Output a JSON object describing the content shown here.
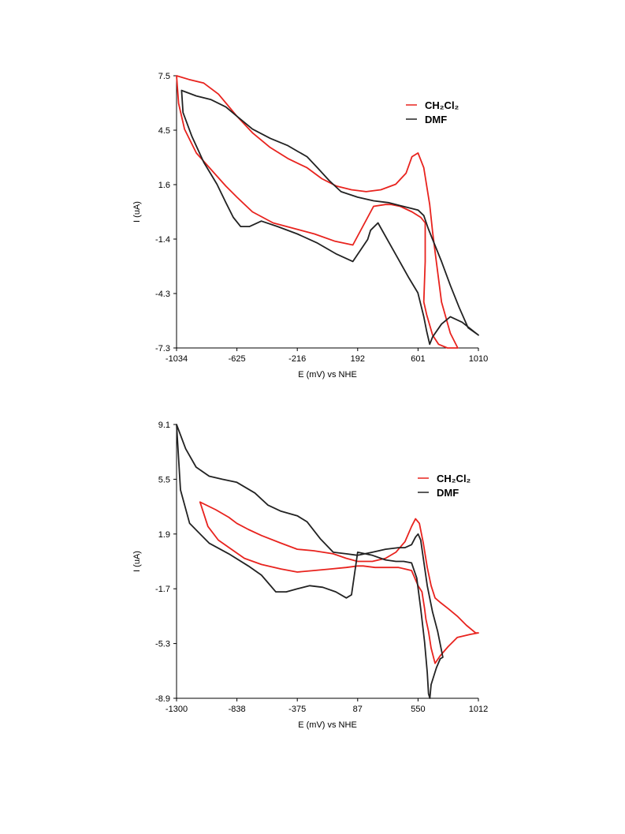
{
  "chart_data": [
    {
      "type": "line",
      "xlabel": "E (mV) vs NHE",
      "ylabel": "I (uA)",
      "xlim": [
        -1034,
        1010
      ],
      "ylim": [
        -7.3,
        7.5
      ],
      "x_ticks": [
        "-1034",
        "-625",
        "-216",
        "192",
        "601",
        "1010"
      ],
      "y_ticks": [
        "7.5",
        "4.5",
        "1.6",
        "-1.4",
        "-4.3",
        "-7.3"
      ],
      "legend_position": "top-right",
      "series": [
        {
          "name": "CH₂Cl₂",
          "color": "#e8231e",
          "x": [
            -1034,
            -950,
            -850,
            -750,
            -625,
            -520,
            -400,
            -280,
            -150,
            -50,
            50,
            150,
            250,
            350,
            450,
            520,
            560,
            601,
            640,
            680,
            700,
            720,
            760,
            820,
            870,
            800,
            740,
            700,
            660,
            640,
            650,
            650,
            620,
            560,
            480,
            420,
            380,
            300,
            160,
            40,
            -100,
            -240,
            -380,
            -520,
            -625,
            -700,
            -800,
            -900,
            -980,
            -1020,
            -1034
          ],
          "y": [
            7.5,
            7.3,
            7.1,
            6.5,
            5.3,
            4.4,
            3.6,
            3.0,
            2.5,
            1.9,
            1.5,
            1.3,
            1.2,
            1.3,
            1.6,
            2.2,
            3.1,
            3.3,
            2.5,
            0.5,
            -1.0,
            -2.3,
            -4.8,
            -6.5,
            -7.3,
            -7.3,
            -7.1,
            -6.6,
            -5.5,
            -4.8,
            -2.6,
            -0.5,
            -0.2,
            0.1,
            0.4,
            0.5,
            0.5,
            0.4,
            -1.7,
            -1.5,
            -1.1,
            -0.8,
            -0.5,
            0.1,
            0.9,
            1.5,
            2.4,
            3.3,
            4.6,
            6.0,
            7.5
          ]
        },
        {
          "name": "DMF",
          "color": "#222222",
          "x": [
            -1000,
            -900,
            -800,
            -700,
            -625,
            -520,
            -400,
            -280,
            -216,
            -150,
            -80,
            0,
            80,
            192,
            300,
            400,
            500,
            601,
            640,
            670,
            700,
            760,
            820,
            880,
            940,
            1010,
            900,
            820,
            760,
            700,
            680,
            660,
            640,
            600,
            540,
            470,
            400,
            330,
            280,
            260,
            160,
            50,
            -80,
            -216,
            -350,
            -460,
            -540,
            -600,
            -650,
            -700,
            -760,
            -850,
            -930,
            -990,
            -1000
          ],
          "y": [
            6.7,
            6.4,
            6.2,
            5.8,
            5.3,
            4.6,
            4.1,
            3.7,
            3.4,
            3.1,
            2.5,
            1.8,
            1.2,
            0.9,
            0.7,
            0.6,
            0.4,
            0.2,
            -0.1,
            -0.8,
            -1.4,
            -2.6,
            -3.9,
            -5.1,
            -6.2,
            -6.6,
            -5.9,
            -5.6,
            -6.0,
            -6.7,
            -7.1,
            -6.4,
            -5.6,
            -4.3,
            -3.5,
            -2.5,
            -1.5,
            -0.5,
            -0.9,
            -1.4,
            -2.6,
            -2.2,
            -1.6,
            -1.1,
            -0.7,
            -0.4,
            -0.7,
            -0.7,
            -0.2,
            0.6,
            1.6,
            2.8,
            4.2,
            5.5,
            6.7
          ]
        }
      ]
    },
    {
      "type": "line",
      "xlabel": "E (mV) vs NHE",
      "ylabel": "I (uA)",
      "xlim": [
        -1300,
        1012
      ],
      "ylim": [
        -8.9,
        9.1
      ],
      "x_ticks": [
        "-1300",
        "-838",
        "-375",
        "87",
        "550",
        "1012"
      ],
      "y_ticks": [
        "9.1",
        "5.5",
        "1.9",
        "-1.7",
        "-5.3",
        "-8.9"
      ],
      "legend_position": "top-right",
      "series": [
        {
          "name": "CH₂Cl₂",
          "color": "#e8231e",
          "x": [
            -1120,
            -1000,
            -900,
            -838,
            -750,
            -650,
            -500,
            -375,
            -250,
            -100,
            0,
            87,
            200,
            300,
            380,
            450,
            500,
            530,
            560,
            590,
            620,
            650,
            680,
            720,
            780,
            850,
            920,
            990,
            1012,
            950,
            850,
            780,
            720,
            680,
            650,
            630,
            610,
            600,
            580,
            550,
            500,
            450,
            400,
            320,
            220,
            130,
            87,
            0,
            -120,
            -250,
            -375,
            -500,
            -650,
            -780,
            -880,
            -980,
            -1060,
            -1120
          ],
          "y": [
            4.0,
            3.5,
            3.0,
            2.6,
            2.2,
            1.8,
            1.3,
            0.9,
            0.8,
            0.6,
            0.3,
            0.1,
            0.1,
            0.3,
            0.7,
            1.4,
            2.4,
            2.9,
            2.6,
            1.3,
            -0.3,
            -1.5,
            -2.3,
            -2.6,
            -3.0,
            -3.5,
            -4.1,
            -4.6,
            -4.6,
            -4.7,
            -4.9,
            -5.5,
            -6.1,
            -6.6,
            -5.6,
            -4.5,
            -3.7,
            -3.0,
            -1.9,
            -1.5,
            -0.5,
            -0.4,
            -0.3,
            -0.3,
            -0.3,
            -0.2,
            -0.2,
            -0.3,
            -0.4,
            -0.5,
            -0.6,
            -0.4,
            -0.1,
            0.3,
            0.9,
            1.5,
            2.4,
            4.0
          ]
        },
        {
          "name": "DMF",
          "color": "#222222",
          "x": [
            -1300,
            -1230,
            -1150,
            -1050,
            -950,
            -838,
            -700,
            -600,
            -500,
            -375,
            -300,
            -200,
            -100,
            0,
            87,
            200,
            300,
            400,
            450,
            500,
            530,
            550,
            570,
            590,
            620,
            660,
            700,
            740,
            720,
            690,
            650,
            640,
            630,
            620,
            600,
            570,
            540,
            500,
            440,
            380,
            300,
            200,
            87,
            40,
            0,
            -80,
            -180,
            -280,
            -375,
            -460,
            -540,
            -600,
            -650,
            -750,
            -900,
            -1050,
            -1200,
            -1270,
            -1300
          ],
          "y": [
            9.1,
            7.5,
            6.3,
            5.7,
            5.5,
            5.3,
            4.6,
            3.8,
            3.4,
            3.1,
            2.7,
            1.6,
            0.7,
            0.6,
            0.5,
            0.7,
            0.9,
            1.0,
            1.0,
            1.2,
            1.7,
            1.9,
            1.5,
            0.3,
            -1.5,
            -3.2,
            -4.5,
            -6.2,
            -6.3,
            -6.9,
            -8.0,
            -8.9,
            -8.6,
            -7.2,
            -5.2,
            -3.0,
            -1.0,
            0.0,
            0.1,
            0.1,
            0.2,
            0.5,
            0.7,
            -2.1,
            -2.3,
            -1.9,
            -1.6,
            -1.5,
            -1.7,
            -1.9,
            -1.9,
            -1.3,
            -0.8,
            -0.2,
            0.6,
            1.3,
            2.6,
            4.8,
            9.1
          ]
        }
      ]
    }
  ]
}
